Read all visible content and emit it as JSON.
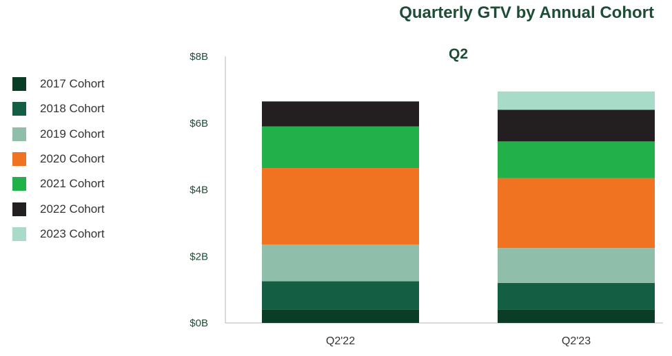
{
  "chart_data": {
    "type": "bar",
    "stacked": true,
    "title": "Quarterly GTV by Annual Cohort",
    "panel_label": "Q2",
    "categories": [
      "Q2'22",
      "Q2'23"
    ],
    "yticks": [
      "$0B",
      "$2B",
      "$4B",
      "$6B",
      "$8B"
    ],
    "ylim": [
      0,
      8
    ],
    "unit": "$B",
    "legend_position": "left",
    "grid": false,
    "series": [
      {
        "name": "2017 Cohort",
        "color": "#0b3d26",
        "values": [
          0.4,
          0.4
        ]
      },
      {
        "name": "2018 Cohort",
        "color": "#145f43",
        "values": [
          0.85,
          0.8
        ]
      },
      {
        "name": "2019 Cohort",
        "color": "#8fbfaa",
        "values": [
          1.1,
          1.05
        ]
      },
      {
        "name": "2020 Cohort",
        "color": "#f07322",
        "values": [
          2.3,
          2.1
        ]
      },
      {
        "name": "2021 Cohort",
        "color": "#22b04b",
        "values": [
          1.25,
          1.1
        ]
      },
      {
        "name": "2022 Cohort",
        "color": "#231f20",
        "values": [
          0.75,
          0.95
        ]
      },
      {
        "name": "2023 Cohort",
        "color": "#a8dcc8",
        "values": [
          0,
          0.55
        ]
      }
    ]
  }
}
